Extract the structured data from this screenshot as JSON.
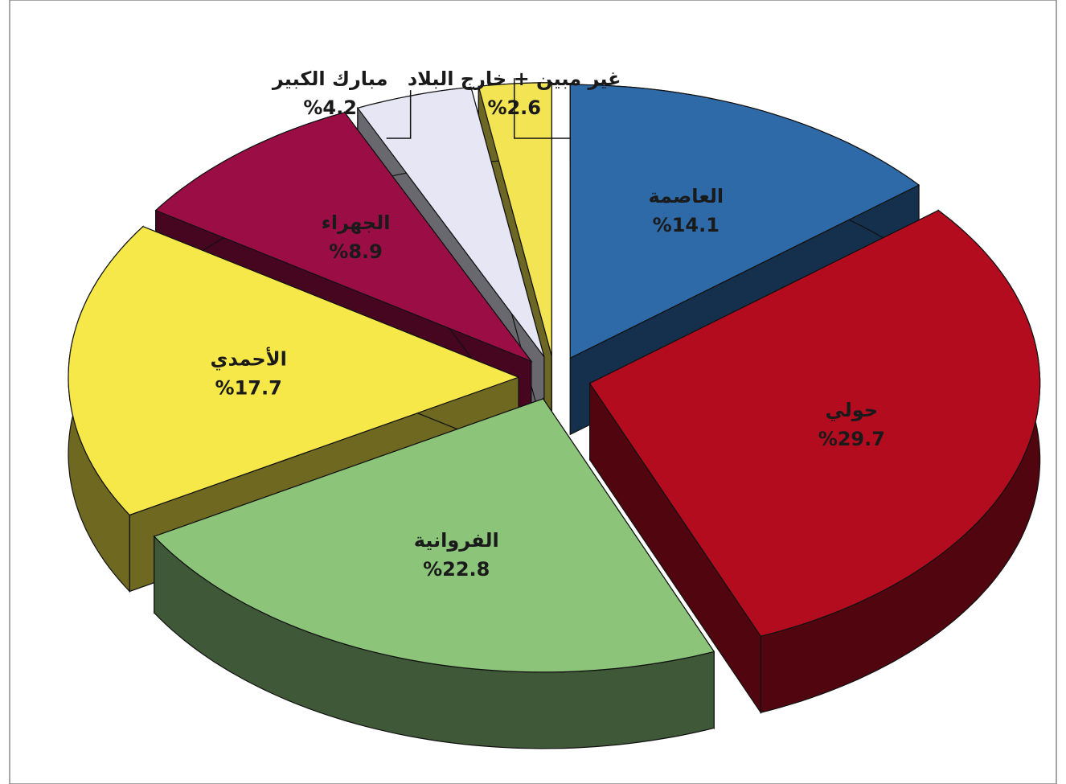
{
  "chart_data": {
    "type": "pie",
    "categories": [
      "العاصمة",
      "حولي",
      "الفروانية",
      "الأحمدي",
      "الجهراء",
      "مبارك الكبير",
      "غير مبين + خارج البلاد"
    ],
    "values": [
      14.1,
      29.7,
      22.8,
      17.7,
      8.9,
      4.2,
      2.6
    ],
    "value_labels": [
      "%14.1",
      "%29.7",
      "%22.8",
      "%17.7",
      "%8.9",
      "%4.2",
      "%2.6"
    ],
    "colors": [
      "#2f6aa8",
      "#b30c1f",
      "#8cc47a",
      "#f7e84a",
      "#9b0d45",
      "#e6e6f5",
      "#f2e452"
    ]
  }
}
